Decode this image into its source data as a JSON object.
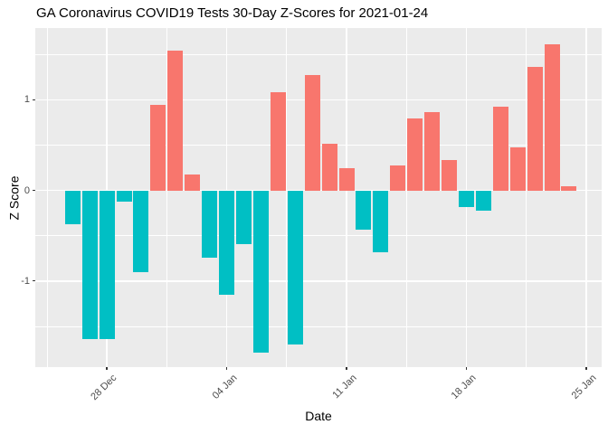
{
  "chart_data": {
    "type": "bar",
    "title": "GA Coronavirus COVID19 Tests 30-Day Z-Scores for 2021-01-24",
    "xlabel": "Date",
    "ylabel": "Z Score",
    "legend": "none",
    "grid": "on",
    "panel_bg": "#EBEBEB",
    "grid_color": "#FFFFFF",
    "positive_color": "#F8766D",
    "negative_color": "#00BFC4",
    "tick_label_color": "#4D4D4D",
    "ylim": [
      -1.96,
      1.79
    ],
    "y_major_ticks": [
      1,
      0,
      -1
    ],
    "y_minor_gridlines": [
      1.5,
      0.5,
      -0.5,
      -1.5
    ],
    "x_ticks": [
      {
        "label": "28 Dec",
        "day_index": 2
      },
      {
        "label": "04 Jan",
        "day_index": 9
      },
      {
        "label": "11 Jan",
        "day_index": 16
      },
      {
        "label": "18 Jan",
        "day_index": 23
      },
      {
        "label": "25 Jan",
        "day_index": 30
      }
    ],
    "categories": [
      "2020-12-26",
      "2020-12-27",
      "2020-12-28",
      "2020-12-29",
      "2020-12-30",
      "2020-12-31",
      "2021-01-01",
      "2021-01-02",
      "2021-01-03",
      "2021-01-04",
      "2021-01-05",
      "2021-01-06",
      "2021-01-07",
      "2021-01-08",
      "2021-01-09",
      "2021-01-10",
      "2021-01-11",
      "2021-01-12",
      "2021-01-13",
      "2021-01-14",
      "2021-01-15",
      "2021-01-16",
      "2021-01-17",
      "2021-01-18",
      "2021-01-19",
      "2021-01-20",
      "2021-01-21",
      "2021-01-22",
      "2021-01-23",
      "2021-01-24"
    ],
    "values": [
      -0.37,
      -1.64,
      -1.64,
      -0.12,
      -0.9,
      0.94,
      1.54,
      0.18,
      -0.74,
      -1.15,
      -0.59,
      -1.79,
      1.08,
      -1.7,
      1.27,
      0.52,
      0.25,
      -0.43,
      -0.68,
      0.28,
      0.8,
      0.86,
      0.34,
      -0.18,
      -0.22,
      0.92,
      0.48,
      1.36,
      1.61,
      0.05
    ]
  }
}
